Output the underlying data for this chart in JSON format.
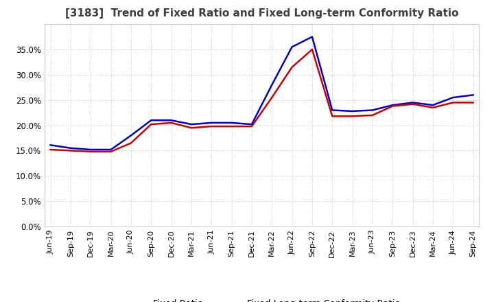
{
  "title": "[3183]  Trend of Fixed Ratio and Fixed Long-term Conformity Ratio",
  "x_labels": [
    "Jun-19",
    "Sep-19",
    "Dec-19",
    "Mar-20",
    "Jun-20",
    "Sep-20",
    "Dec-20",
    "Mar-21",
    "Jun-21",
    "Sep-21",
    "Dec-21",
    "Mar-22",
    "Jun-22",
    "Sep-22",
    "Dec-22",
    "Mar-23",
    "Jun-23",
    "Sep-23",
    "Dec-23",
    "Mar-24",
    "Jun-24",
    "Sep-24"
  ],
  "fixed_ratio": [
    16.1,
    15.5,
    15.2,
    15.2,
    18.0,
    21.0,
    21.0,
    20.2,
    20.5,
    20.5,
    20.2,
    28.0,
    35.5,
    37.5,
    23.0,
    22.8,
    23.0,
    24.0,
    24.5,
    24.0,
    25.5,
    26.0
  ],
  "fixed_lt_ratio": [
    15.2,
    15.0,
    14.8,
    14.8,
    16.5,
    20.2,
    20.5,
    19.5,
    19.8,
    19.8,
    19.8,
    25.5,
    31.5,
    35.0,
    21.8,
    21.8,
    22.0,
    23.8,
    24.2,
    23.5,
    24.5,
    24.5
  ],
  "fixed_ratio_color": "#0000cc",
  "fixed_lt_ratio_color": "#cc0000",
  "ylim": [
    0,
    40
  ],
  "yticks": [
    0.0,
    5.0,
    10.0,
    15.0,
    20.0,
    25.0,
    30.0,
    35.0
  ],
  "background_color": "#ffffff",
  "plot_bg_color": "#ffffff",
  "grid_color": "#aaaaaa",
  "legend_fixed": "Fixed Ratio",
  "legend_lt": "Fixed Long-term Conformity Ratio",
  "title_color": "#404040",
  "title_fontsize": 11
}
